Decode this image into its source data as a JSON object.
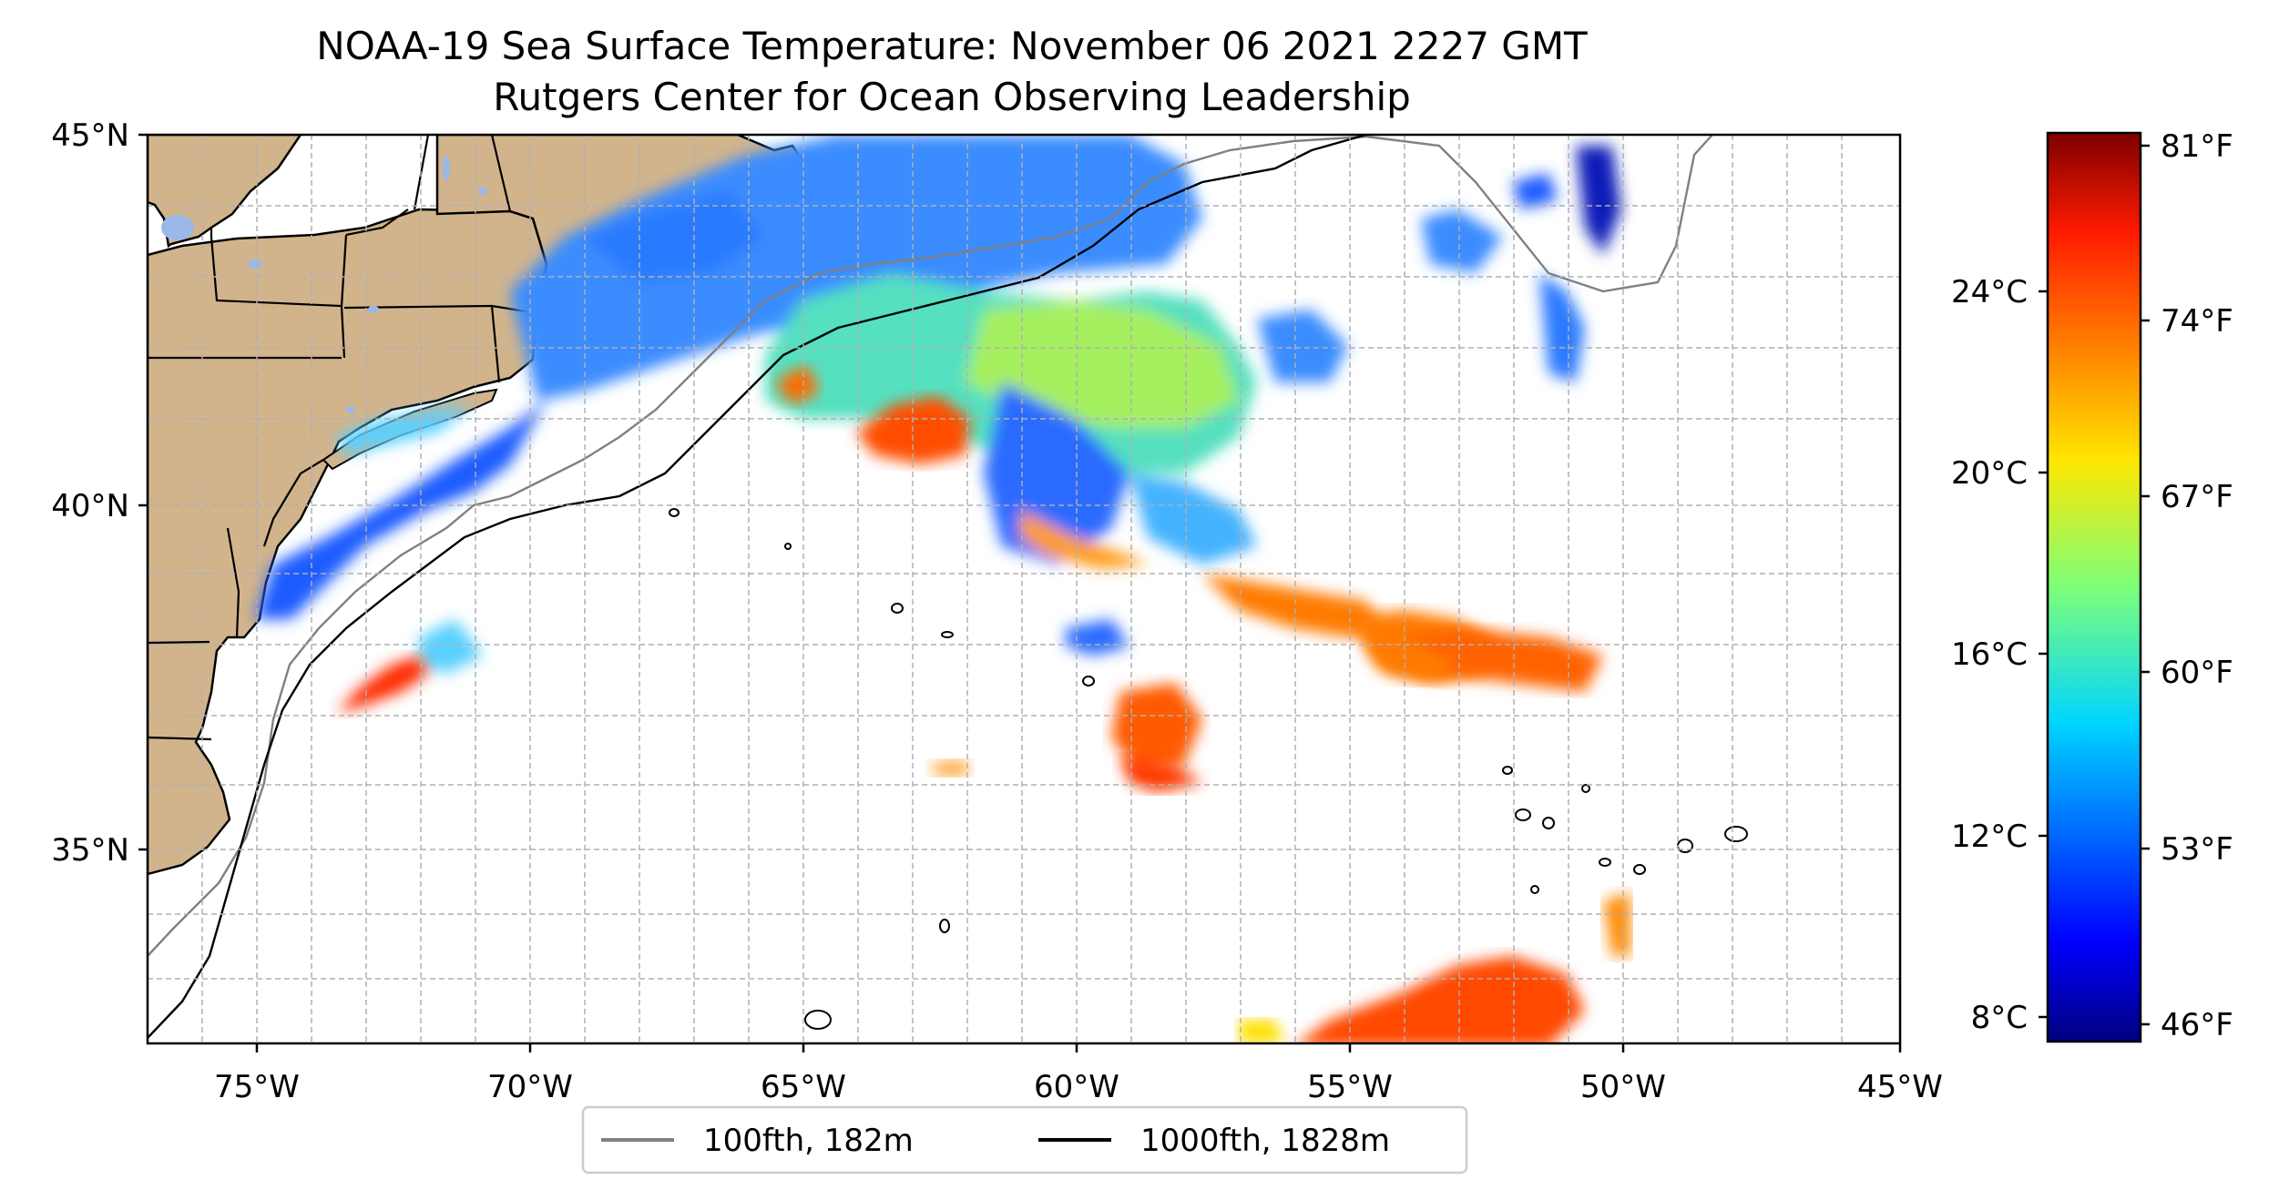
{
  "title": {
    "line1": "NOAA-19 Sea Surface Temperature: November 06 2021 2227 GMT",
    "line2": "Rutgers Center for Ocean Observing Leadership"
  },
  "map": {
    "lat_labels": [
      "45°N",
      "40°N",
      "35°N"
    ],
    "lon_labels": [
      "75°W",
      "70°W",
      "65°W",
      "60°W",
      "55°W",
      "50°W",
      "45°W"
    ],
    "lon_range": [
      -77,
      -45
    ],
    "lat_range": [
      32.2,
      45
    ],
    "grid": true,
    "land_color": "#d2b48c",
    "lake_color": "#9ab8e8"
  },
  "legend": {
    "items": [
      {
        "label": "100fth, 182m",
        "color": "#808080"
      },
      {
        "label": "1000fth, 1828m",
        "color": "#000000"
      }
    ]
  },
  "colorbar": {
    "celsius_labels": [
      "24°C",
      "20°C",
      "16°C",
      "12°C",
      "8°C"
    ],
    "fahrenheit_labels": [
      "81°F",
      "74°F",
      "67°F",
      "60°F",
      "53°F",
      "46°F"
    ],
    "colormap": "jet"
  }
}
